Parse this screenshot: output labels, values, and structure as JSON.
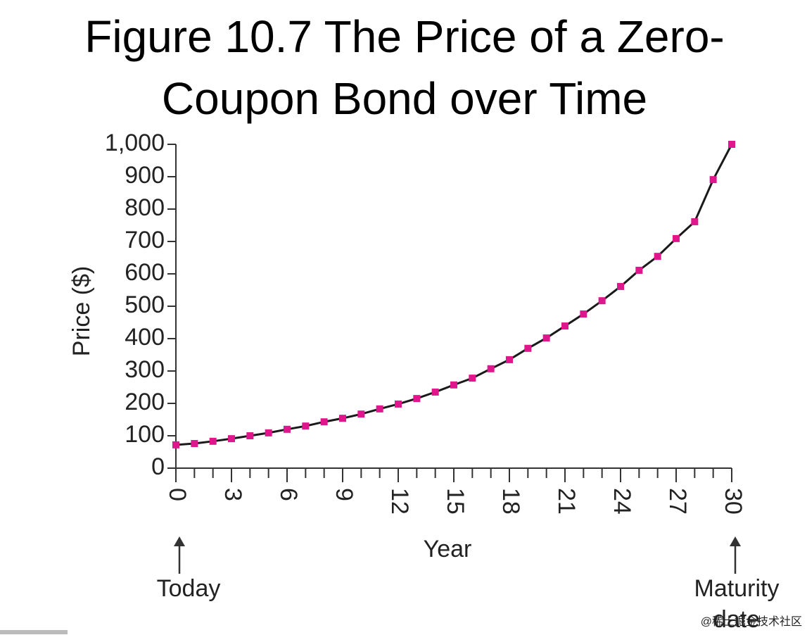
{
  "chart_data": {
    "type": "line",
    "title": "Figure 10.7 The Price of a Zero-Coupon Bond over Time",
    "x_label": "Year",
    "y_label": "Price ($)",
    "x": [
      0,
      1,
      2,
      3,
      4,
      5,
      6,
      7,
      8,
      9,
      10,
      11,
      12,
      13,
      14,
      15,
      16,
      17,
      18,
      19,
      20,
      21,
      22,
      23,
      24,
      25,
      26,
      27,
      28,
      29,
      30
    ],
    "series": [
      {
        "line_color": "#1a1a1a",
        "color": "#e0168c",
        "values": [
          72,
          76,
          83,
          91,
          100,
          109,
          120,
          130,
          143,
          154,
          167,
          183,
          198,
          215,
          235,
          257,
          278,
          307,
          335,
          370,
          402,
          439,
          476,
          517,
          561,
          611,
          654,
          709,
          761,
          891,
          1000
        ]
      }
    ],
    "xlim": [
      0,
      30
    ],
    "xticks": [
      0,
      3,
      6,
      9,
      12,
      15,
      18,
      21,
      24,
      27,
      30
    ],
    "ylim": [
      0,
      1000
    ],
    "yticks": [
      0,
      100,
      200,
      300,
      400,
      500,
      600,
      700,
      800,
      900,
      {
        "value": 1000,
        "label": "1,000"
      }
    ],
    "annotations": [
      {
        "text": "Today",
        "x": 0
      },
      {
        "text": "Maturity date",
        "x": 30
      }
    ],
    "watermark": "@稀土掘金技术社区"
  }
}
